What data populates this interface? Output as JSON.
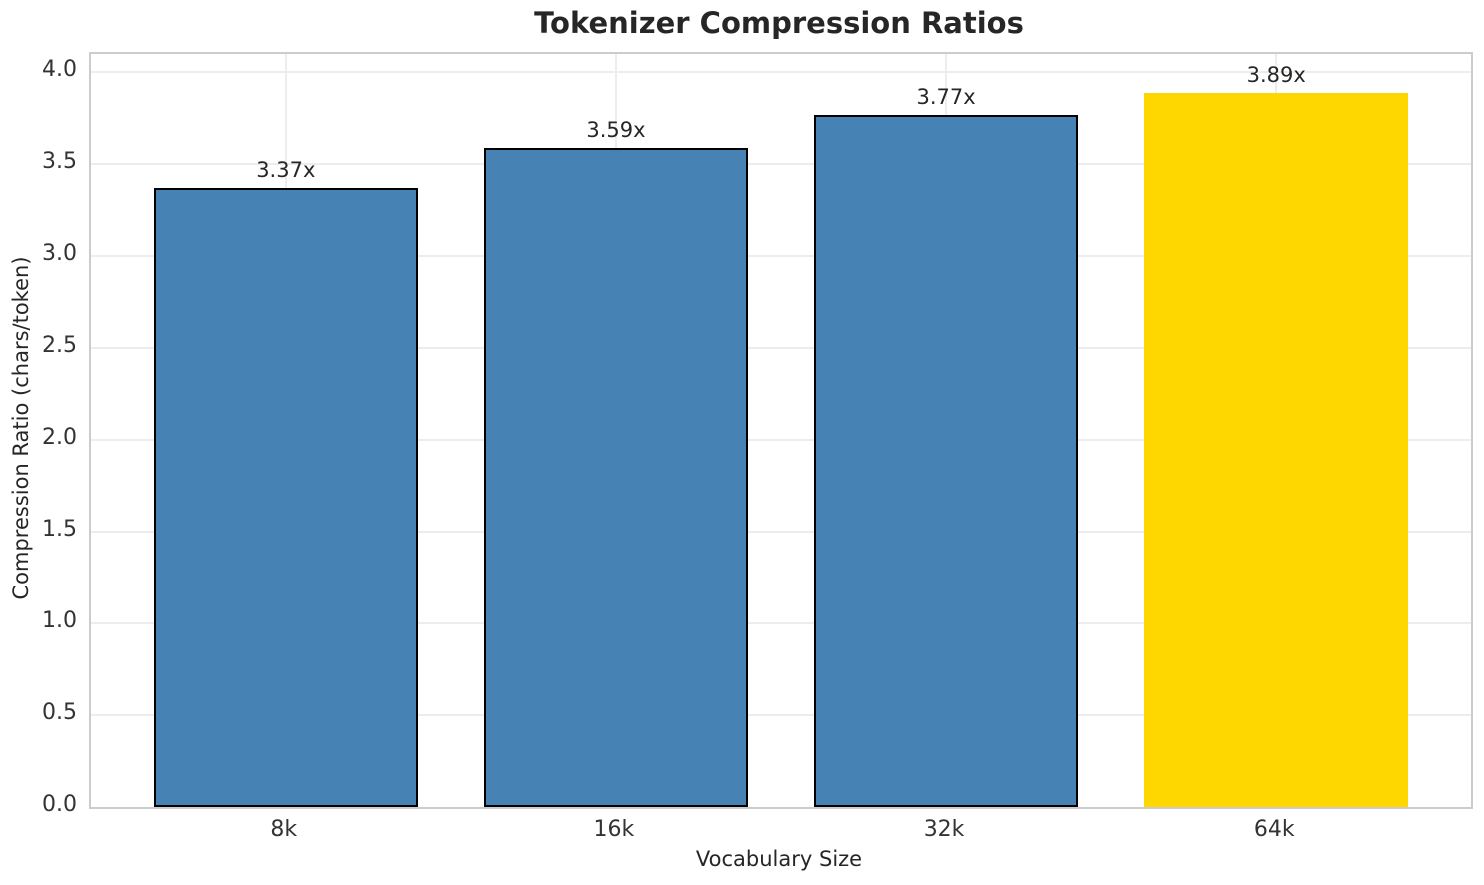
{
  "chart_data": {
    "type": "bar",
    "title": "Tokenizer Compression Ratios",
    "xlabel": "Vocabulary Size",
    "ylabel": "Compression Ratio (chars/token)",
    "categories": [
      "8k",
      "16k",
      "32k",
      "64k"
    ],
    "values": [
      3.37,
      3.59,
      3.77,
      3.89
    ],
    "bar_labels": [
      "3.37x",
      "3.59x",
      "3.77x",
      "3.89x"
    ],
    "bar_colors": [
      "#4682B4",
      "#4682B4",
      "#4682B4",
      "#FFD700"
    ],
    "bar_edge_colors": [
      "#000000",
      "#000000",
      "#000000",
      "none"
    ],
    "bar_width": 0.8,
    "xlim": [
      -0.59,
      3.59
    ],
    "ylim": [
      0,
      4.1
    ],
    "yticks": [
      0.0,
      0.5,
      1.0,
      1.5,
      2.0,
      2.5,
      3.0,
      3.5,
      4.0
    ],
    "ytick_labels": [
      "0.0",
      "0.5",
      "1.0",
      "1.5",
      "2.0",
      "2.5",
      "3.0",
      "3.5",
      "4.0"
    ],
    "grid": true,
    "legend": "none",
    "colors": {
      "grid": "#ededed",
      "spine": "#cccccc",
      "text": "#262626",
      "tick_text": "#333333",
      "highlight_bar": "#FFD700",
      "default_bar": "#4682B4"
    }
  }
}
